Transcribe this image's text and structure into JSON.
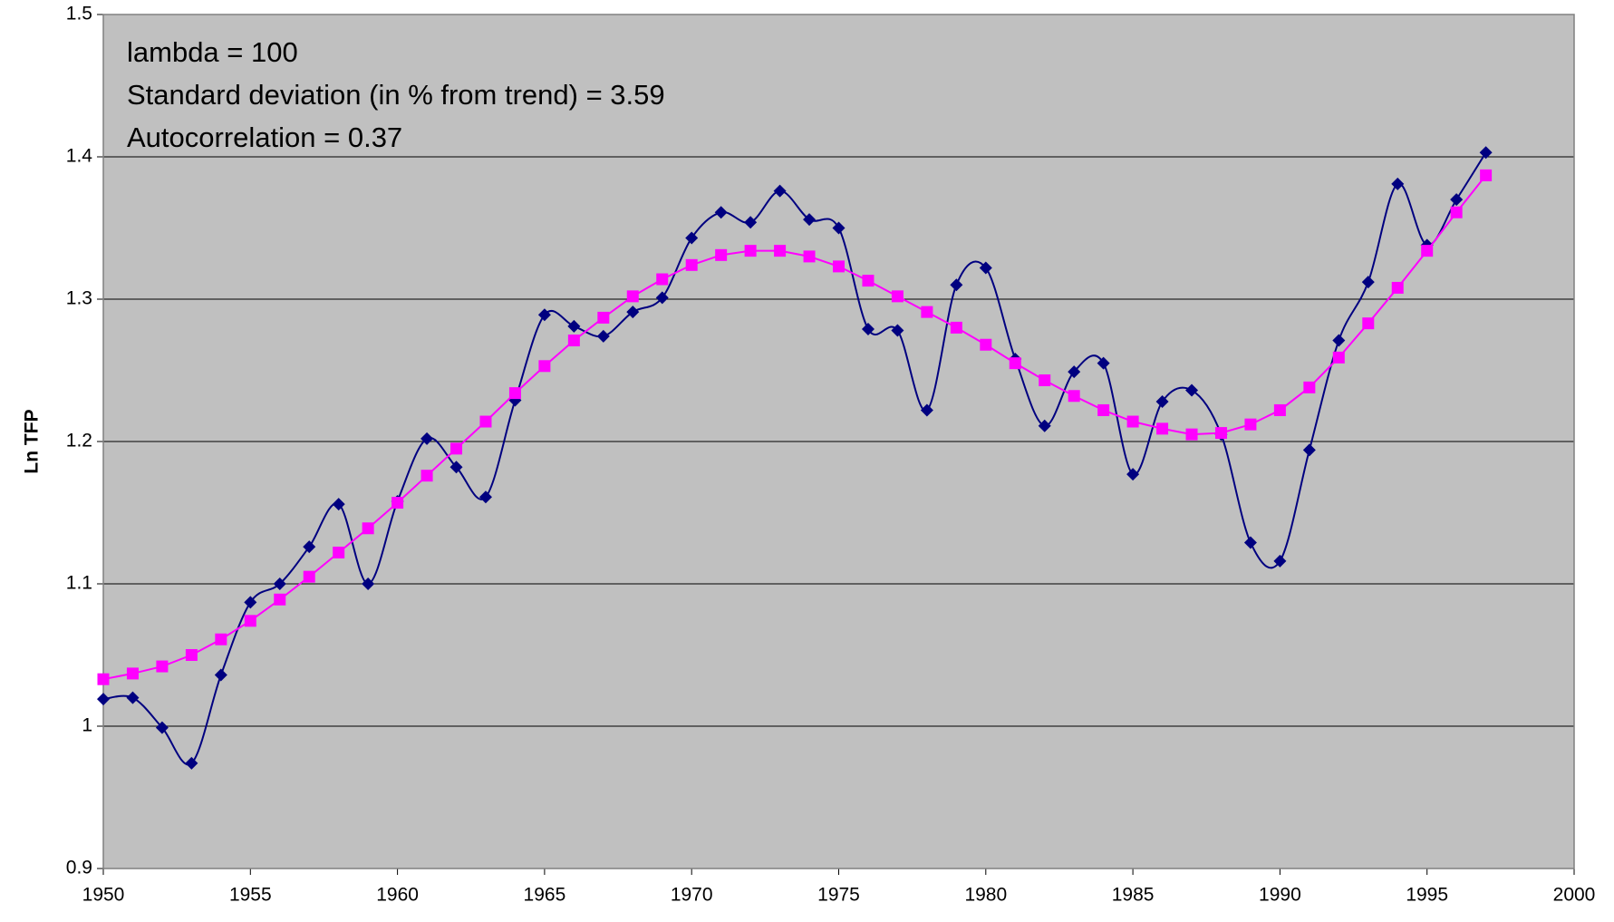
{
  "chart_data": {
    "type": "line",
    "y_label": "Ln TFP",
    "annotations": [
      "lambda = 100",
      "Standard deviation (in % from trend) = 3.59",
      "Autocorrelation = 0.37"
    ],
    "x": [
      1950,
      1951,
      1952,
      1953,
      1954,
      1955,
      1956,
      1957,
      1958,
      1959,
      1960,
      1961,
      1962,
      1963,
      1964,
      1965,
      1966,
      1967,
      1968,
      1969,
      1970,
      1971,
      1972,
      1973,
      1974,
      1975,
      1976,
      1977,
      1978,
      1979,
      1980,
      1981,
      1982,
      1983,
      1984,
      1985,
      1986,
      1987,
      1988,
      1989,
      1990,
      1991,
      1992,
      1993,
      1994,
      1995,
      1996,
      1997
    ],
    "series": [
      {
        "color": "#000080",
        "marker": "diamond",
        "smooth": true,
        "values": [
          1.019,
          1.02,
          0.999,
          0.974,
          1.036,
          1.087,
          1.1,
          1.126,
          1.156,
          1.1,
          1.158,
          1.202,
          1.182,
          1.161,
          1.229,
          1.289,
          1.281,
          1.274,
          1.291,
          1.301,
          1.343,
          1.361,
          1.354,
          1.376,
          1.356,
          1.35,
          1.279,
          1.278,
          1.222,
          1.31,
          1.322,
          1.258,
          1.211,
          1.249,
          1.255,
          1.177,
          1.228,
          1.236,
          1.205,
          1.129,
          1.116,
          1.194,
          1.271,
          1.312,
          1.381,
          1.338,
          1.37,
          1.403
        ]
      },
      {
        "color": "#ff00ff",
        "marker": "square",
        "smooth": false,
        "values": [
          1.033,
          1.037,
          1.042,
          1.05,
          1.061,
          1.074,
          1.089,
          1.105,
          1.122,
          1.139,
          1.157,
          1.176,
          1.195,
          1.214,
          1.234,
          1.253,
          1.271,
          1.287,
          1.302,
          1.314,
          1.324,
          1.331,
          1.334,
          1.334,
          1.33,
          1.323,
          1.313,
          1.302,
          1.291,
          1.28,
          1.268,
          1.255,
          1.243,
          1.232,
          1.222,
          1.214,
          1.209,
          1.205,
          1.206,
          1.212,
          1.222,
          1.238,
          1.259,
          1.283,
          1.308,
          1.334,
          1.361,
          1.387
        ]
      }
    ],
    "xlim": [
      1950,
      2000
    ],
    "xticks": [
      1950,
      1955,
      1960,
      1965,
      1970,
      1975,
      1980,
      1985,
      1990,
      1995,
      2000
    ],
    "ylim": [
      0.9,
      1.5
    ],
    "yticks": [
      0.9,
      1,
      1.1,
      1.2,
      1.3,
      1.4,
      1.5
    ],
    "grid": true,
    "plot_background": "#c0c0c0"
  }
}
